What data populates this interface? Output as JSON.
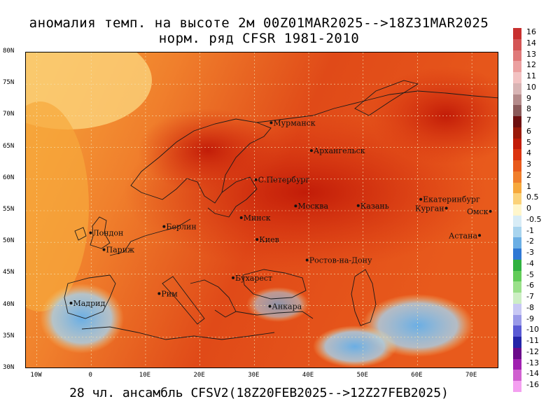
{
  "title_line1": "аномалия темп. на высоте 2м 00Z01MAR2025-->18Z31MAR2025",
  "title_line2": "норм. ряд CFSR 1981-2010",
  "footer": "28 чл. ансамбль CFSV2(18Z20FEB2025-->12Z27FEB2025)",
  "lat_labels": [
    "80N",
    "75N",
    "70N",
    "65N",
    "60N",
    "55N",
    "50N",
    "45N",
    "40N",
    "35N",
    "30N"
  ],
  "lon_labels": [
    "10W",
    "0",
    "10E",
    "20E",
    "30E",
    "40E",
    "50E",
    "60E",
    "70E"
  ],
  "cities": [
    {
      "name": "Мурманск",
      "lon": 33.1,
      "lat": 68.9
    },
    {
      "name": "Архангельск",
      "lon": 40.5,
      "lat": 64.5
    },
    {
      "name": "С.Петербург",
      "lon": 30.3,
      "lat": 59.9
    },
    {
      "name": "Екатеринбург",
      "lon": 60.6,
      "lat": 56.8
    },
    {
      "name": "Москва",
      "lon": 37.6,
      "lat": 55.75
    },
    {
      "name": "Казань",
      "lon": 49.1,
      "lat": 55.8
    },
    {
      "name": "Курган",
      "lon": 65.3,
      "lat": 55.4
    },
    {
      "name": "Минск",
      "lon": 27.6,
      "lat": 53.9
    },
    {
      "name": "Омск",
      "lon": 73.4,
      "lat": 54.9
    },
    {
      "name": "Лондон",
      "lon": -0.1,
      "lat": 51.5
    },
    {
      "name": "Берлин",
      "lon": 13.4,
      "lat": 52.5
    },
    {
      "name": "Киев",
      "lon": 30.5,
      "lat": 50.45
    },
    {
      "name": "Астана",
      "lon": 71.4,
      "lat": 51.1
    },
    {
      "name": "Париж",
      "lon": 2.35,
      "lat": 48.85
    },
    {
      "name": "Ростов-на-Дону",
      "lon": 39.7,
      "lat": 47.2
    },
    {
      "name": "Бухарест",
      "lon": 26.1,
      "lat": 44.4
    },
    {
      "name": "Рим",
      "lon": 12.5,
      "lat": 41.9
    },
    {
      "name": "Мадрид",
      "lon": -3.7,
      "lat": 40.4
    },
    {
      "name": "Анкара",
      "lon": 32.85,
      "lat": 39.9
    }
  ],
  "colorbar": [
    {
      "label": "16",
      "color": "#c8302f"
    },
    {
      "label": "14",
      "color": "#d45555"
    },
    {
      "label": "13",
      "color": "#e07a7a"
    },
    {
      "label": "12",
      "color": "#eba0a0"
    },
    {
      "label": "11",
      "color": "#f2c2c2"
    },
    {
      "label": "10",
      "color": "#d8b4b4"
    },
    {
      "label": "9",
      "color": "#b48a8a"
    },
    {
      "label": "8",
      "color": "#8a5a5a"
    },
    {
      "label": "7",
      "color": "#6e1010"
    },
    {
      "label": "6",
      "color": "#9a1a0a"
    },
    {
      "label": "5",
      "color": "#c21c08"
    },
    {
      "label": "4",
      "color": "#dc3410"
    },
    {
      "label": "3",
      "color": "#e85a1c"
    },
    {
      "label": "2",
      "color": "#f07f2c"
    },
    {
      "label": "1",
      "color": "#f6a83c"
    },
    {
      "label": "0.5",
      "color": "#fbd27a"
    },
    {
      "label": "0",
      "color": "#fff6cc"
    },
    {
      "label": "-0.5",
      "color": "#d8ecf6"
    },
    {
      "label": "-1",
      "color": "#a8d4ee"
    },
    {
      "label": "-2",
      "color": "#6aaee4"
    },
    {
      "label": "-3",
      "color": "#2f78d4"
    },
    {
      "label": "-4",
      "color": "#2fb040"
    },
    {
      "label": "-5",
      "color": "#62cc58"
    },
    {
      "label": "-6",
      "color": "#9ae08a"
    },
    {
      "label": "-7",
      "color": "#cdeec4"
    },
    {
      "label": "-8",
      "color": "#c8c8f4"
    },
    {
      "label": "-9",
      "color": "#9a9ae8"
    },
    {
      "label": "-10",
      "color": "#5a5ad4"
    },
    {
      "label": "-11",
      "color": "#2424a8"
    },
    {
      "label": "-12",
      "color": "#6a0a8a"
    },
    {
      "label": "-13",
      "color": "#a020b0"
    },
    {
      "label": "-14",
      "color": "#d060d0"
    },
    {
      "label": "-16",
      "color": "#f4a0f0"
    }
  ],
  "colors": {
    "ocean_warm": "#f0a050",
    "land_warm": "#e4461c",
    "land_hot": "#c81e08",
    "cold": "#5aa0e0"
  }
}
